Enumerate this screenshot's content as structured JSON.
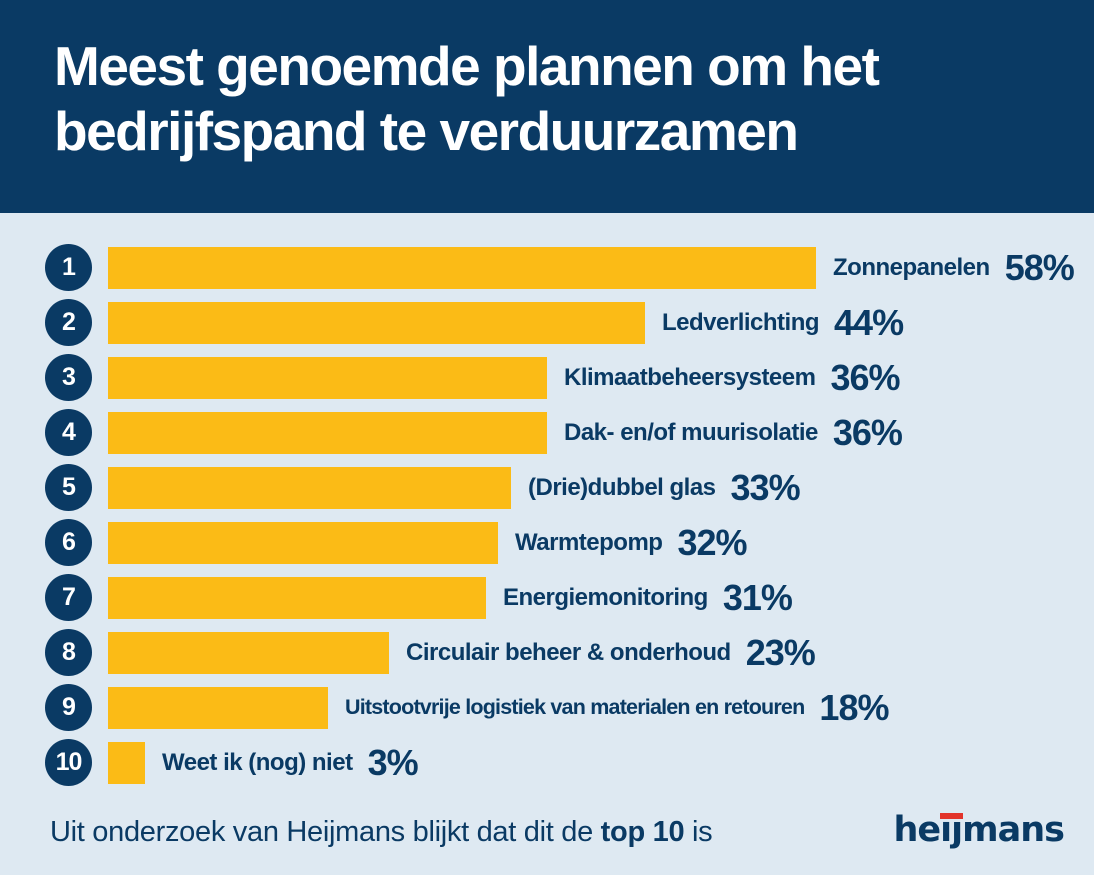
{
  "header": {
    "title_lines": [
      "Meest genoemde plannen om het",
      "bedrijfspand te verduurzamen"
    ]
  },
  "chart_data": {
    "type": "bar",
    "orientation": "horizontal",
    "title": "Meest genoemde plannen om het bedrijfspand te verduurzamen",
    "value_suffix": "%",
    "xlim": [
      0,
      60
    ],
    "grid": false,
    "legend": false,
    "ranks": [
      1,
      2,
      3,
      4,
      5,
      6,
      7,
      8,
      9,
      10
    ],
    "categories": [
      "Zonnepanelen",
      "Ledverlichting",
      "Klimaatbeheersysteem",
      "Dak- en/of muurisolatie",
      "(Drie)dubbel glas",
      "Warmtepomp",
      "Energiemonitoring",
      "Circulair beheer & onderhoud",
      "Uitstootvrije logistiek van materialen en retouren",
      "Weet ik (nog) niet"
    ],
    "values": [
      58,
      44,
      36,
      36,
      33,
      32,
      31,
      23,
      18,
      3
    ]
  },
  "footer": {
    "note_prefix": "Uit onderzoek van Heijmans blijkt dat dit de ",
    "note_bold": "top 10",
    "note_suffix": " is",
    "logo_text": "heijmans"
  },
  "colors": {
    "navy": "#0A3A64",
    "background": "#DEE9F2",
    "bar_yellow": "#FBBB16",
    "logo_red": "#E2342B"
  }
}
